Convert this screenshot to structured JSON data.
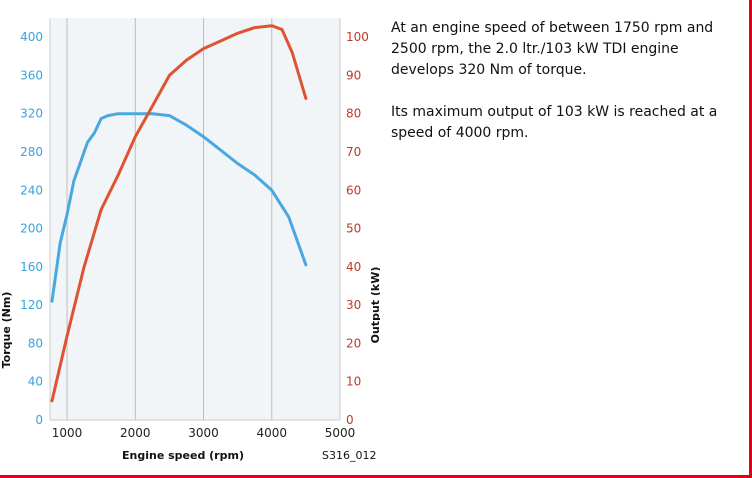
{
  "chart_data": {
    "type": "line",
    "xlabel": "Engine speed (rpm)",
    "ylabel_left": "Torque (Nm)",
    "ylabel_right": "Output (kW)",
    "xlim": [
      750,
      5000
    ],
    "ylim_left": [
      0,
      420
    ],
    "ylim_right": [
      0,
      105
    ],
    "x_ticks": [
      1000,
      2000,
      3000,
      4000,
      5000
    ],
    "y_ticks_left": [
      0,
      40,
      80,
      120,
      160,
      200,
      240,
      280,
      320,
      360,
      400
    ],
    "y_ticks_right": [
      0,
      10,
      20,
      30,
      40,
      50,
      60,
      70,
      80,
      90,
      100
    ],
    "grid_x": [
      1000,
      2000,
      3000,
      4000
    ],
    "caption": "S316_012",
    "series": [
      {
        "name": "Torque (Nm)",
        "axis": "left",
        "color": "#4aa8e0",
        "x": [
          780,
          900,
          1000,
          1100,
          1200,
          1300,
          1400,
          1500,
          1600,
          1750,
          2000,
          2250,
          2500,
          2750,
          3000,
          3250,
          3500,
          3750,
          4000,
          4250,
          4500
        ],
        "y": [
          124,
          185,
          215,
          250,
          270,
          290,
          300,
          315,
          318,
          320,
          320,
          320,
          318,
          308,
          296,
          282,
          268,
          256,
          240,
          212,
          162
        ]
      },
      {
        "name": "Output (kW)",
        "axis": "right",
        "color": "#de5433",
        "x": [
          780,
          1000,
          1250,
          1500,
          1750,
          2000,
          2250,
          2500,
          2750,
          3000,
          3250,
          3500,
          3750,
          4000,
          4150,
          4300,
          4500
        ],
        "y": [
          5,
          22,
          40,
          55,
          64,
          74,
          82,
          90,
          94,
          97,
          99,
          101,
          102.5,
          103,
          102,
          96,
          84
        ]
      }
    ]
  },
  "text": {
    "paragraph1": "At an engine speed of between 1750 rpm and 2500 rpm, the 2.0 ltr./103 kW TDI engine develops 320 Nm of torque.",
    "paragraph2": "Its maximum output of 103 kW is reached at a speed of 4000 rpm."
  }
}
